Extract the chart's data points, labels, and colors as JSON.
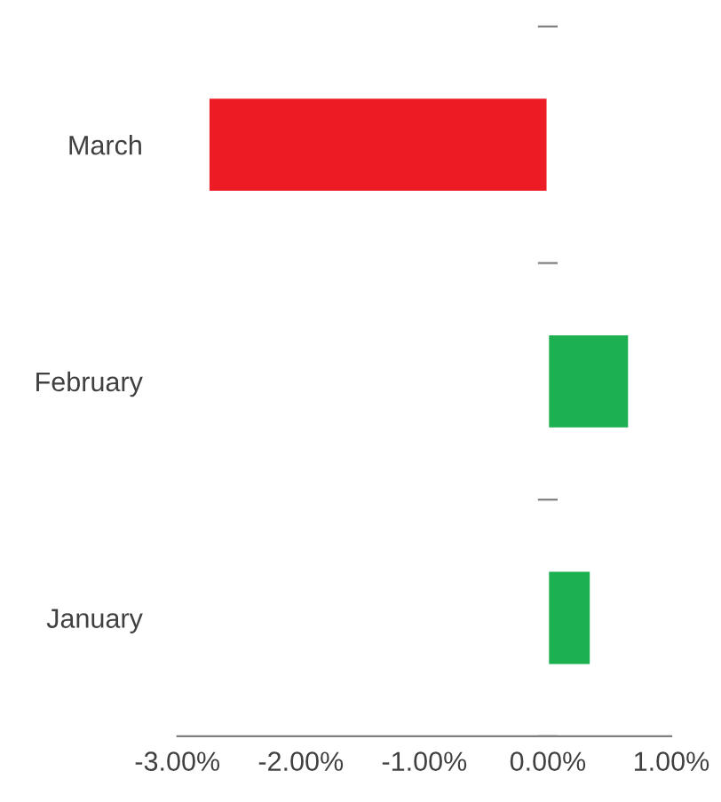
{
  "chart_data": {
    "type": "bar",
    "orientation": "horizontal",
    "categories": [
      "March",
      "February",
      "January"
    ],
    "values": [
      -2.75,
      0.66,
      0.35
    ],
    "colors": [
      "#ed1c24",
      "#1db050",
      "#1db050"
    ],
    "xlim": [
      -3,
      1
    ],
    "xticks": [
      {
        "value": -3,
        "label": "-3.00%"
      },
      {
        "value": -2,
        "label": "-2.00%"
      },
      {
        "value": -1,
        "label": "-1.00%"
      },
      {
        "value": 0,
        "label": "0.00%"
      },
      {
        "value": 1,
        "label": "1.00%"
      }
    ],
    "grid": false,
    "legend": false
  }
}
